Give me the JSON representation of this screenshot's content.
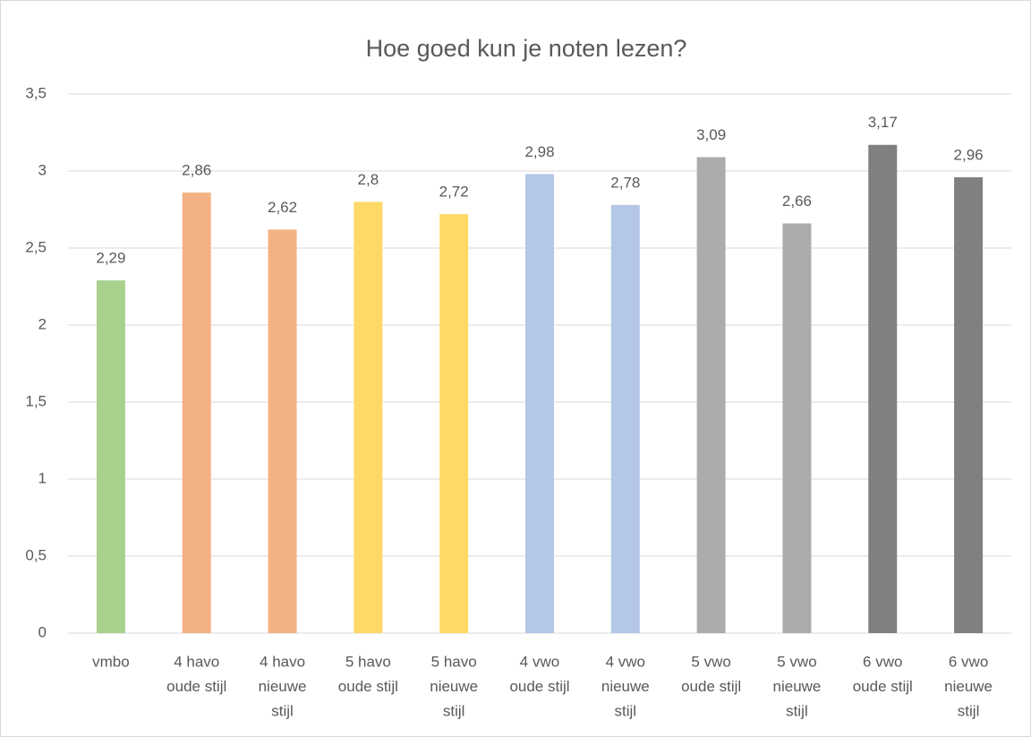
{
  "chart_data": {
    "type": "bar",
    "title": "Hoe goed kun je noten lezen?",
    "categories": [
      [
        "vmbo"
      ],
      [
        "4 havo",
        "oude stijl"
      ],
      [
        "4 havo",
        "nieuwe",
        "stijl"
      ],
      [
        "5 havo",
        "oude stijl"
      ],
      [
        "5 havo",
        "nieuwe",
        "stijl"
      ],
      [
        "4 vwo",
        "oude stijl"
      ],
      [
        "4 vwo",
        "nieuwe",
        "stijl"
      ],
      [
        "5 vwo",
        "oude stijl"
      ],
      [
        "5 vwo",
        "nieuwe",
        "stijl"
      ],
      [
        "6 vwo",
        "oude stijl"
      ],
      [
        "6 vwo",
        "nieuwe",
        "stijl"
      ]
    ],
    "values": [
      2.29,
      2.86,
      2.62,
      2.8,
      2.72,
      2.98,
      2.78,
      3.09,
      2.66,
      3.17,
      2.96
    ],
    "value_labels": [
      "2,29",
      "2,86",
      "2,62",
      "2,8",
      "2,72",
      "2,98",
      "2,78",
      "3,09",
      "2,66",
      "3,17",
      "2,96"
    ],
    "colors": [
      "#a9d18e",
      "#f4b183",
      "#f4b183",
      "#ffd966",
      "#ffd966",
      "#b4c7e7",
      "#b4c7e7",
      "#aeabab",
      "#aeabab",
      "#808080",
      "#808080"
    ],
    "ylim": [
      0,
      3.5
    ],
    "yticks": [
      0,
      {
        "value": 0.5,
        "label": "0,5"
      },
      1,
      {
        "value": 1.5,
        "label": "1,5"
      },
      2,
      {
        "value": 2.5,
        "label": "2,5"
      },
      3,
      {
        "value": 3.5,
        "label": "3,5"
      }
    ],
    "grid": true
  }
}
